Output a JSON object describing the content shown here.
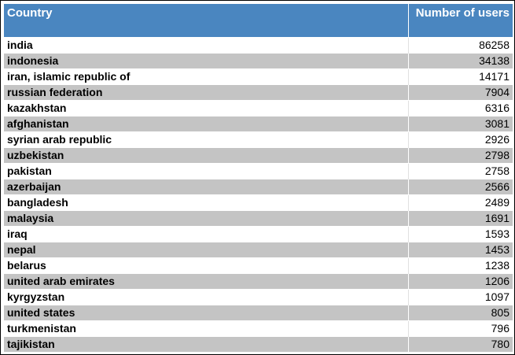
{
  "chart_data": {
    "type": "table",
    "columns": [
      "Country",
      "Number of users"
    ],
    "rows": [
      {
        "country": "india",
        "users": "86258"
      },
      {
        "country": "indonesia",
        "users": "34138"
      },
      {
        "country": "iran, islamic republic of",
        "users": "14171"
      },
      {
        "country": "russian federation",
        "users": "7904"
      },
      {
        "country": "kazakhstan",
        "users": "6316"
      },
      {
        "country": "afghanistan",
        "users": "3081"
      },
      {
        "country": "syrian arab republic",
        "users": "2926"
      },
      {
        "country": "uzbekistan",
        "users": "2798"
      },
      {
        "country": "pakistan",
        "users": "2758"
      },
      {
        "country": "azerbaijan",
        "users": "2566"
      },
      {
        "country": "bangladesh",
        "users": "2489"
      },
      {
        "country": "malaysia",
        "users": "1691"
      },
      {
        "country": "iraq",
        "users": "1593"
      },
      {
        "country": "nepal",
        "users": "1453"
      },
      {
        "country": "belarus",
        "users": "1238"
      },
      {
        "country": "united arab emirates",
        "users": "1206"
      },
      {
        "country": "kyrgyzstan",
        "users": "1097"
      },
      {
        "country": "united states",
        "users": "805"
      },
      {
        "country": "turkmenistan",
        "users": "796"
      },
      {
        "country": "tajikistan",
        "users": "780"
      }
    ]
  },
  "colors": {
    "header_bg": "#4a86c0",
    "header_text": "#ffffff",
    "row_alt_bg": "#c4c4c4",
    "row_bg": "#ffffff"
  }
}
